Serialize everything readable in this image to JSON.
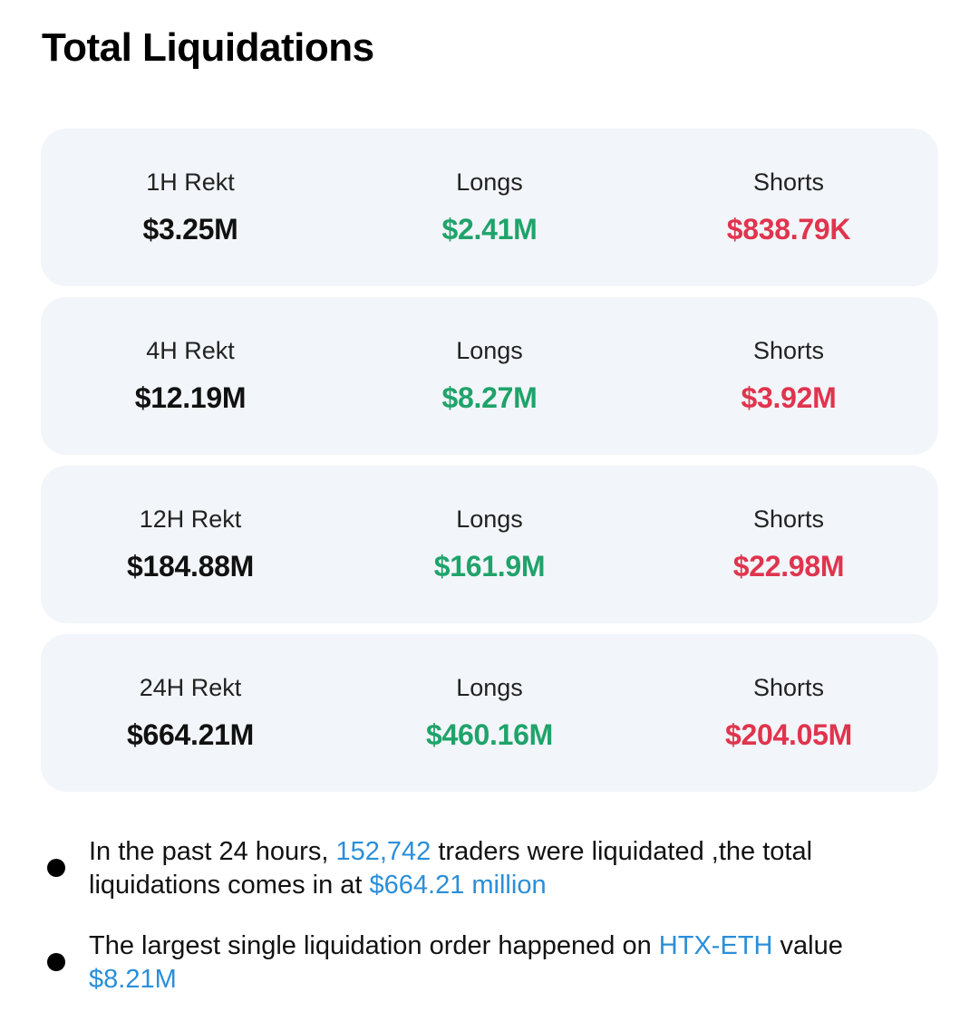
{
  "header": {
    "title": "Total Liquidations"
  },
  "colors": {
    "long": "#1fa36a",
    "short": "#e0344e",
    "highlight": "#2a8fd8"
  },
  "rows": [
    {
      "period": "1H Rekt",
      "total": "$3.25M",
      "longs_label": "Longs",
      "longs": "$2.41M",
      "shorts_label": "Shorts",
      "shorts": "$838.79K"
    },
    {
      "period": "4H Rekt",
      "total": "$12.19M",
      "longs_label": "Longs",
      "longs": "$8.27M",
      "shorts_label": "Shorts",
      "shorts": "$3.92M"
    },
    {
      "period": "12H Rekt",
      "total": "$184.88M",
      "longs_label": "Longs",
      "longs": "$161.9M",
      "shorts_label": "Shorts",
      "shorts": "$22.98M"
    },
    {
      "period": "24H Rekt",
      "total": "$664.21M",
      "longs_label": "Longs",
      "longs": "$460.16M",
      "shorts_label": "Shorts",
      "shorts": "$204.05M"
    }
  ],
  "notes": {
    "n1": {
      "part1": "In the past 24 hours, ",
      "traders": "152,742",
      "part2": " traders were liquidated ,the total liquidations comes in at ",
      "amount": "$664.21 million"
    },
    "n2": {
      "part1": "The largest single liquidation order happened on ",
      "exchange": "HTX-ETH",
      "part2": " value ",
      "amount": "$8.21M"
    }
  }
}
